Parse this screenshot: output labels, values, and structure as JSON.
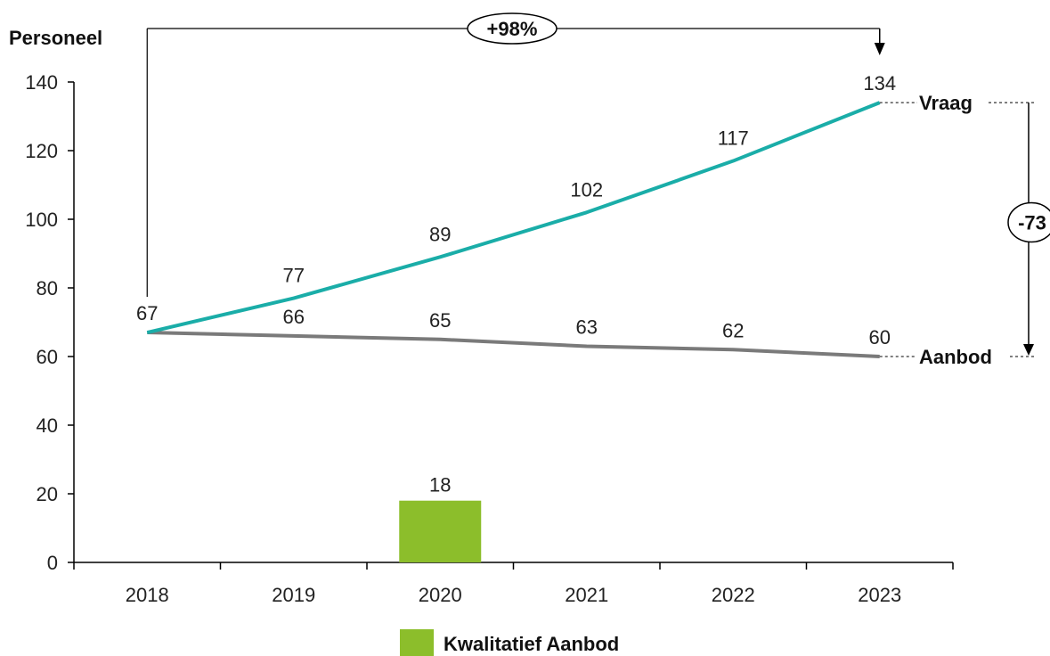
{
  "chart_data": {
    "type": "line",
    "ylabel": "Personeel",
    "xlabel": "",
    "title": "",
    "ylim": [
      0,
      140
    ],
    "yticks": [
      0,
      20,
      40,
      60,
      80,
      100,
      120,
      140
    ],
    "categories": [
      "2018",
      "2019",
      "2020",
      "2021",
      "2022",
      "2023"
    ],
    "series": [
      {
        "name": "Vraag",
        "type": "line",
        "color": "#1AADA8",
        "values": [
          67,
          77,
          89,
          102,
          117,
          134
        ]
      },
      {
        "name": "Aanbod",
        "type": "line",
        "color": "#7A7A7A",
        "values": [
          67,
          66,
          65,
          63,
          62,
          60
        ]
      },
      {
        "name": "Kwalitatief Aanbod",
        "type": "bar",
        "color": "#8CBE2B",
        "values": [
          null,
          null,
          18,
          null,
          null,
          null
        ]
      }
    ],
    "annotations": {
      "growth": "+98%",
      "gap": "-73"
    },
    "legend": {
      "position": "bottom",
      "entries": [
        "Kwalitatief Aanbod"
      ]
    },
    "grid": false
  }
}
